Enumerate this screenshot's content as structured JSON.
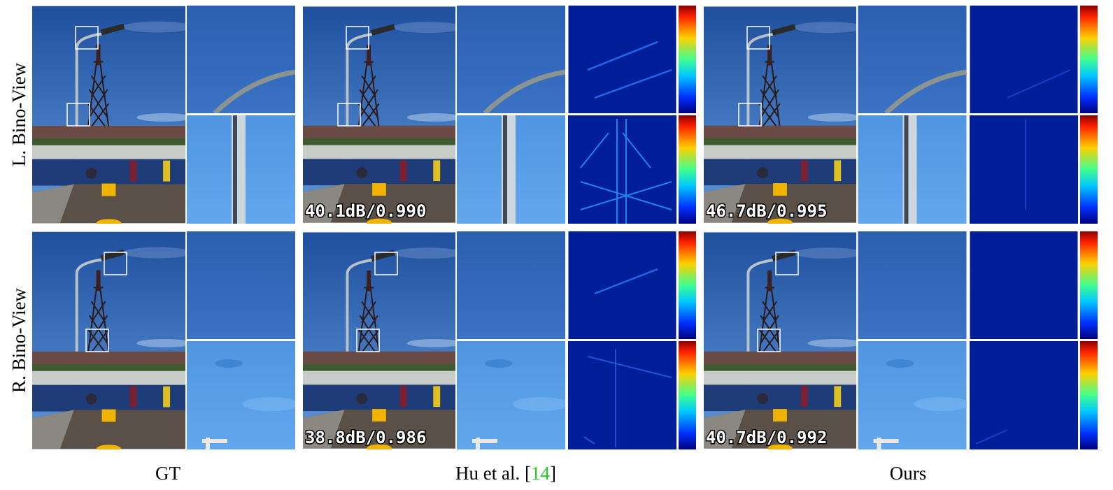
{
  "rows": [
    {
      "label": "L. Bino-View",
      "metrics": [
        "40.1dB/0.990",
        "46.7dB/0.995"
      ]
    },
    {
      "label": "R. Bino-View",
      "metrics": [
        "38.8dB/0.986",
        "40.7dB/0.992"
      ]
    }
  ],
  "columns": [
    {
      "caption": "GT"
    },
    {
      "caption_parts": [
        "Hu et al. [",
        "14",
        "]"
      ]
    },
    {
      "caption": "Ours"
    }
  ]
}
